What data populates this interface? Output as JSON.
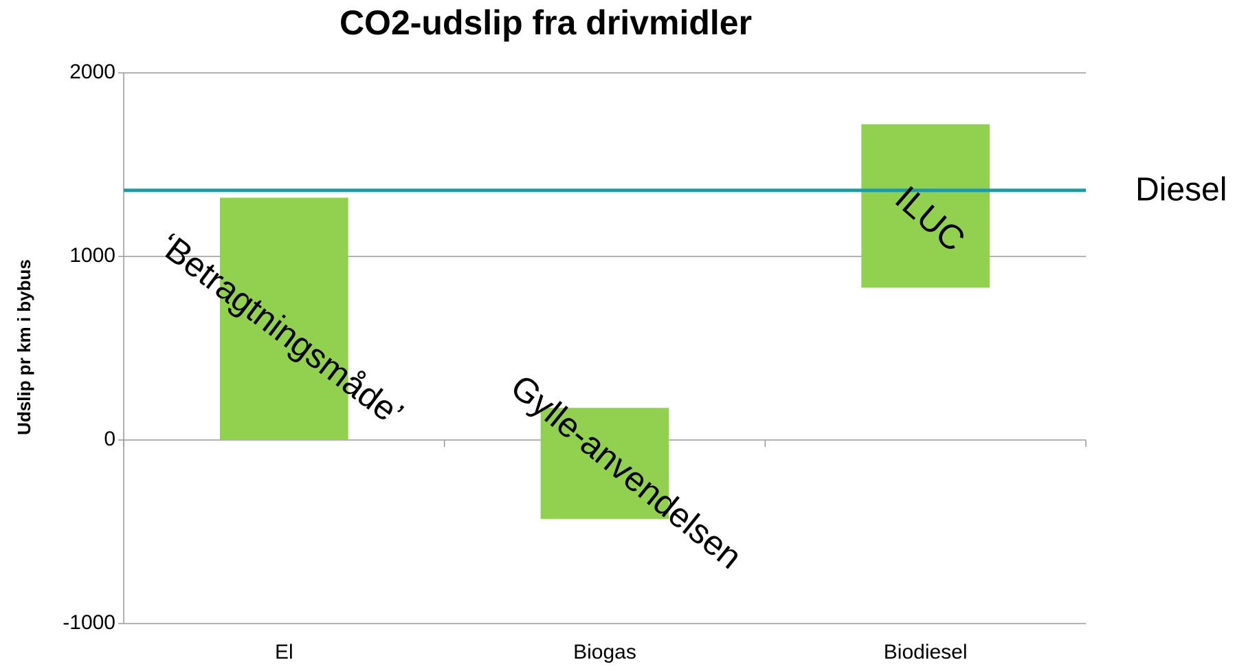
{
  "chart_data": {
    "type": "floating-bar",
    "title": "CO2-udslip fra drivmidler",
    "y_label": "Udslip pr km i bybus",
    "categories": [
      "El",
      "Biogas",
      "Biodiesel"
    ],
    "low": [
      0,
      -430,
      830
    ],
    "high": [
      1320,
      175,
      1720
    ],
    "color": "#92d050",
    "reference": {
      "label": "Diesel",
      "value": 1360,
      "color": "#1a9ba5"
    },
    "annotations": [
      "‘Betragtningsmåde’",
      "Gylle-anvendelsen",
      "ILUC"
    ],
    "ylim": [
      -1000,
      2000
    ],
    "yticks": [
      -1000,
      0,
      1000,
      2000
    ],
    "grid": true
  }
}
